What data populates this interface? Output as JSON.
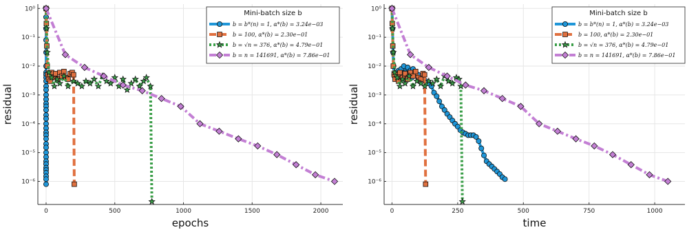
{
  "chart_data": [
    {
      "type": "line",
      "xlabel": "epochs",
      "ylabel": "residual",
      "xlim": [
        -60,
        2160
      ],
      "xticks": [
        0,
        500,
        1000,
        1500,
        2000
      ],
      "ylog": true,
      "ylim_exp": [
        -6.8,
        0.15
      ],
      "yticks_exp": [
        0,
        -1,
        -2,
        -3,
        -4,
        -5,
        -6
      ],
      "grid": true,
      "legend": {
        "title": "Mini-batch size b",
        "placement": "top-right",
        "entries": [
          "b = b*(n) = 1, α*(b) = 3.24e−03",
          "b = 100, α*(b) = 2.30e−01",
          "b = √n = 376, α*(b) = 4.79e−01",
          "b = n = 141691, α*(b) = 7.86e−01"
        ]
      },
      "series": [
        {
          "color": "#1f96d8",
          "marker": "circle",
          "dash": "solid",
          "x": [
            0,
            0,
            0,
            0,
            0,
            0,
            0,
            0,
            0,
            0,
            0,
            0,
            0,
            0,
            0,
            0,
            0,
            0,
            0,
            0,
            0,
            0,
            0,
            0,
            0,
            0,
            0,
            0,
            0,
            0,
            0,
            0,
            0,
            0,
            0,
            0
          ],
          "y": [
            1,
            0.5,
            0.2,
            0.08,
            0.03,
            0.01,
            0.006,
            0.005,
            0.004,
            0.003,
            0.002,
            0.0015,
            0.001,
            0.0007,
            0.0005,
            0.0004,
            0.0003,
            0.0002,
            0.00015,
            0.0001,
            7e-05,
            5e-05,
            4e-05,
            3e-05,
            2e-05,
            1.5e-05,
            1e-05,
            7e-06,
            5e-06,
            4e-06,
            3e-06,
            2.5e-06,
            2e-06,
            1.5e-06,
            1.2e-06,
            8e-07
          ]
        },
        {
          "color": "#e0703f",
          "marker": "square",
          "dash": "dash",
          "x": [
            0,
            2,
            5,
            8,
            12,
            18,
            25,
            30,
            40,
            55,
            70,
            85,
            100,
            115,
            130,
            145,
            160,
            175,
            190,
            200,
            205
          ],
          "y": [
            1,
            0.3,
            0.05,
            0.01,
            0.005,
            0.0035,
            0.005,
            0.003,
            0.006,
            0.004,
            0.0055,
            0.0035,
            0.006,
            0.0045,
            0.0065,
            0.004,
            0.0035,
            0.0055,
            0.006,
            0.005,
            8e-07
          ]
        },
        {
          "color": "#3a9e48",
          "marker": "star",
          "dash": "dot",
          "x": [
            0,
            3,
            8,
            20,
            40,
            60,
            80,
            100,
            130,
            160,
            200,
            230,
            260,
            290,
            320,
            350,
            380,
            410,
            440,
            470,
            500,
            530,
            560,
            590,
            620,
            650,
            680,
            710,
            730,
            760,
            770
          ],
          "y": [
            1,
            0.2,
            0.03,
            0.006,
            0.004,
            0.002,
            0.0035,
            0.0025,
            0.0045,
            0.002,
            0.003,
            0.0025,
            0.002,
            0.003,
            0.0025,
            0.0035,
            0.002,
            0.0045,
            0.003,
            0.0025,
            0.004,
            0.002,
            0.0035,
            0.0015,
            0.0025,
            0.0035,
            0.002,
            0.003,
            0.004,
            0.002,
            2e-07
          ]
        },
        {
          "color": "#c37fd4",
          "marker": "diamond",
          "dash": "dashdot",
          "x": [
            0,
            140,
            280,
            420,
            560,
            700,
            840,
            980,
            1120,
            1260,
            1400,
            1540,
            1680,
            1820,
            1960,
            2100
          ],
          "y": [
            1,
            0.025,
            0.009,
            0.0045,
            0.0022,
            0.0014,
            0.00075,
            0.0004,
            0.0001,
            5.5e-05,
            3e-05,
            1.7e-05,
            8.5e-06,
            3.8e-06,
            1.7e-06,
            1e-06
          ]
        }
      ]
    },
    {
      "type": "line",
      "xlabel": "time",
      "ylabel": "residual",
      "xlim": [
        -30,
        1115
      ],
      "xticks": [
        0,
        250,
        500,
        750,
        1000
      ],
      "ylog": true,
      "ylim_exp": [
        -6.8,
        0.15
      ],
      "yticks_exp": [
        0,
        -1,
        -2,
        -3,
        -4,
        -5,
        -6
      ],
      "grid": true,
      "legend": {
        "title": "Mini-batch size b",
        "placement": "top-right",
        "entries": [
          "b = b*(n) = 1, α*(b) = 3.24e−03",
          "b = 100, α*(b) = 2.30e−01",
          "b = √n = 376, α*(b) = 4.79e−01",
          "b = n = 141691, α*(b) = 7.86e−01"
        ]
      },
      "series": [
        {
          "color": "#1f96d8",
          "marker": "circle",
          "dash": "solid",
          "x": [
            0,
            2,
            4,
            6,
            8,
            12,
            16,
            20,
            25,
            30,
            35,
            40,
            45,
            50,
            55,
            60,
            65,
            70,
            75,
            80,
            90,
            100,
            110,
            120,
            130,
            140,
            150,
            160,
            170,
            180,
            190,
            200,
            210,
            220,
            230,
            240,
            250,
            260,
            270,
            280,
            290,
            300,
            310,
            320,
            330,
            340,
            350,
            360,
            370,
            380,
            390,
            400,
            410,
            420,
            430
          ],
          "y": [
            1,
            0.2,
            0.03,
            0.01,
            0.005,
            0.004,
            0.006,
            0.004,
            0.007,
            0.005,
            0.008,
            0.004,
            0.01,
            0.006,
            0.004,
            0.009,
            0.005,
            0.007,
            0.004,
            0.008,
            0.006,
            0.005,
            0.004,
            0.0035,
            0.003,
            0.0025,
            0.002,
            0.0012,
            0.0009,
            0.0006,
            0.0004,
            0.0003,
            0.00022,
            0.00017,
            0.00013,
            0.0001,
            8e-05,
            6e-05,
            5e-05,
            4.5e-05,
            4e-05,
            4e-05,
            4e-05,
            3.5e-05,
            2.5e-05,
            1.4e-05,
            8e-06,
            5e-06,
            4e-06,
            3.3e-06,
            2.7e-06,
            2.2e-06,
            1.8e-06,
            1.4e-06,
            1.2e-06
          ]
        },
        {
          "color": "#e0703f",
          "marker": "square",
          "dash": "dash",
          "x": [
            0,
            1,
            3,
            5,
            8,
            12,
            18,
            25,
            30,
            40,
            50,
            60,
            70,
            80,
            90,
            100,
            110,
            118,
            124,
            128
          ],
          "y": [
            1,
            0.3,
            0.05,
            0.01,
            0.005,
            0.0035,
            0.005,
            0.003,
            0.006,
            0.004,
            0.0055,
            0.0035,
            0.006,
            0.0045,
            0.0065,
            0.004,
            0.0035,
            0.0055,
            0.005,
            8e-07
          ]
        },
        {
          "color": "#3a9e48",
          "marker": "star",
          "dash": "dot",
          "x": [
            0,
            2,
            5,
            10,
            20,
            30,
            40,
            50,
            65,
            80,
            95,
            110,
            125,
            140,
            155,
            170,
            185,
            200,
            215,
            230,
            245,
            255,
            262,
            268
          ],
          "y": [
            1,
            0.2,
            0.03,
            0.006,
            0.004,
            0.002,
            0.0035,
            0.0025,
            0.0045,
            0.002,
            0.003,
            0.0025,
            0.002,
            0.003,
            0.0025,
            0.0035,
            0.002,
            0.0045,
            0.003,
            0.0025,
            0.004,
            0.0035,
            0.002,
            2e-07
          ]
        },
        {
          "color": "#c37fd4",
          "marker": "diamond",
          "dash": "dashdot",
          "x": [
            0,
            70,
            140,
            210,
            280,
            350,
            420,
            490,
            560,
            630,
            700,
            770,
            840,
            910,
            980,
            1050
          ],
          "y": [
            1,
            0.025,
            0.009,
            0.0045,
            0.0022,
            0.0014,
            0.00075,
            0.0004,
            0.0001,
            5.5e-05,
            3e-05,
            1.7e-05,
            8.5e-06,
            3.8e-06,
            1.7e-06,
            1e-06
          ]
        }
      ]
    }
  ]
}
